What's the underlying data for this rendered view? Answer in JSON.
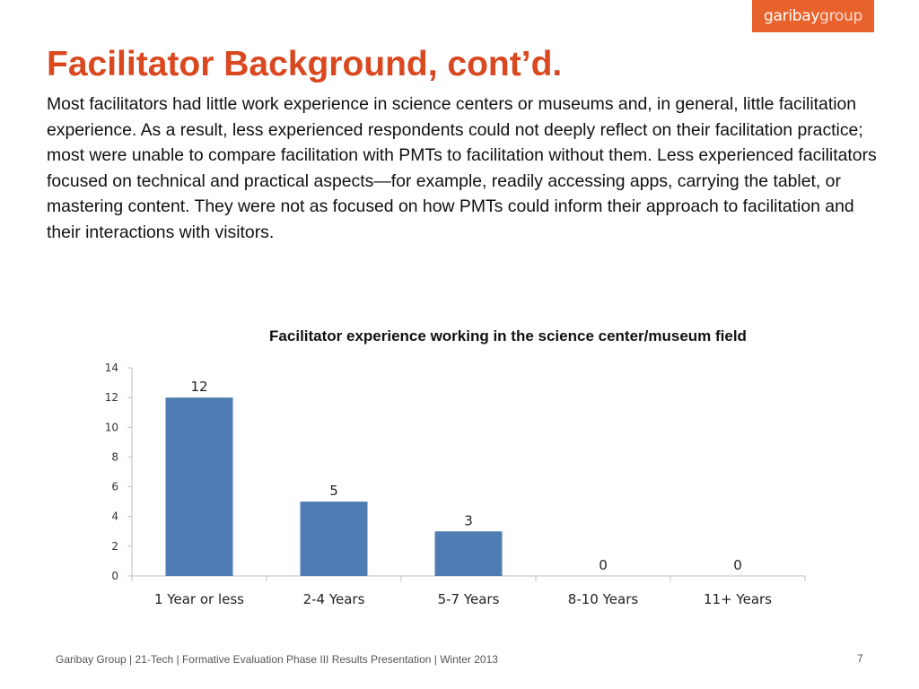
{
  "logo": {
    "part_a": "garibay",
    "part_b": "group"
  },
  "title": "Facilitator Background, cont’d.",
  "body": "Most facilitators had little work experience in science centers or museums and, in general, little facilitation experience. As a result, less experienced respondents could not deeply reflect on their facilitation practice; most were unable to compare facilitation with PMTs to facilitation without them. Less experienced facilitators focused on technical and practical aspects—for example, readily accessing apps, carrying the tablet, or mastering content. They were not as focused on how PMTs could inform their approach to facilitation and their interactions with visitors.",
  "chart_data": {
    "type": "bar",
    "title": "Facilitator experience working in the science center/museum field",
    "categories": [
      "1 Year or less",
      "2-4 Years",
      "5-7 Years",
      "8-10 Years",
      "11+ Years"
    ],
    "values": [
      12,
      5,
      3,
      0,
      0
    ],
    "data_labels": [
      "12",
      "5",
      "3",
      "0",
      "0"
    ],
    "yticks": [
      0,
      2,
      4,
      6,
      8,
      10,
      12,
      14
    ],
    "ylim": [
      0,
      14
    ],
    "xlabel": "",
    "ylabel": "",
    "grid": false,
    "legend": "none",
    "bar_color": "#4f7cb3"
  },
  "footer": "Garibay Group | 21-Tech | Formative Evaluation Phase III Results Presentation | Winter 2013",
  "page_number": "7"
}
